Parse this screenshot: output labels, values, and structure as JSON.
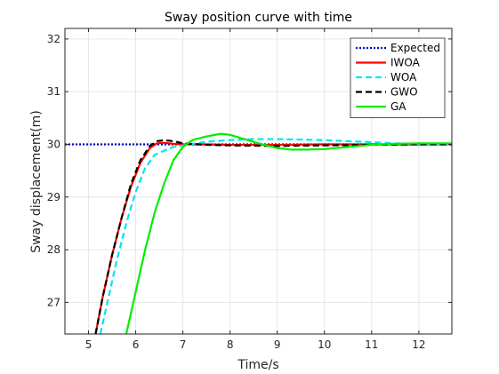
{
  "chart_data": {
    "type": "line",
    "title": "Sway position curve with time",
    "xlabel": "Time/s",
    "ylabel": "Sway displacement(m)",
    "xlim": [
      4.5,
      12.7
    ],
    "ylim": [
      26.4,
      32.2
    ],
    "xticks": [
      5,
      6,
      7,
      8,
      9,
      10,
      11,
      12
    ],
    "yticks": [
      27,
      28,
      29,
      30,
      31,
      32
    ],
    "grid": true,
    "legend_position": "top-right",
    "series": [
      {
        "name": "Expected",
        "color": "#0000cc",
        "dash": "dotted",
        "x": [
          4.5,
          12.7
        ],
        "y": [
          30.0,
          30.0
        ]
      },
      {
        "name": "IWOA",
        "color": "#ff0000",
        "dash": "solid",
        "x": [
          5.15,
          5.3,
          5.5,
          5.7,
          5.9,
          6.1,
          6.3,
          6.45,
          6.6,
          6.8,
          7.0,
          7.5,
          8.0,
          9.0,
          10.0,
          11.0,
          12.0,
          12.7
        ],
        "y": [
          26.4,
          27.1,
          27.9,
          28.6,
          29.2,
          29.65,
          29.93,
          30.02,
          30.03,
          30.01,
          30.0,
          30.0,
          29.99,
          29.99,
          30.0,
          30.0,
          30.0,
          30.0
        ]
      },
      {
        "name": "WOA",
        "color": "#00e5ee",
        "dash": "dashed",
        "x": [
          5.25,
          5.4,
          5.6,
          5.8,
          6.0,
          6.2,
          6.4,
          6.6,
          6.8,
          7.0,
          7.5,
          8.0,
          8.5,
          9.0,
          9.5,
          10.0,
          10.5,
          11.0,
          11.5,
          12.0,
          12.7
        ],
        "y": [
          26.4,
          27.0,
          27.8,
          28.5,
          29.1,
          29.55,
          29.8,
          29.88,
          29.95,
          29.98,
          30.05,
          30.08,
          30.1,
          30.1,
          30.09,
          30.08,
          30.06,
          30.04,
          30.02,
          30.01,
          30.0
        ]
      },
      {
        "name": "GWO",
        "color": "#000000",
        "dash": "dashed",
        "x": [
          5.15,
          5.3,
          5.5,
          5.7,
          5.9,
          6.1,
          6.3,
          6.45,
          6.6,
          6.8,
          7.0,
          7.5,
          8.0,
          9.0,
          10.0,
          11.0,
          12.0,
          12.7
        ],
        "y": [
          26.4,
          27.1,
          27.9,
          28.6,
          29.25,
          29.7,
          29.97,
          30.06,
          30.08,
          30.06,
          30.02,
          29.99,
          29.98,
          29.97,
          29.98,
          29.99,
          30.0,
          30.0
        ]
      },
      {
        "name": "GA",
        "color": "#00ee00",
        "dash": "solid",
        "x": [
          5.8,
          6.0,
          6.2,
          6.4,
          6.6,
          6.8,
          7.0,
          7.2,
          7.5,
          7.8,
          8.0,
          8.3,
          8.6,
          9.0,
          9.3,
          9.6,
          10.0,
          10.5,
          11.0,
          11.5,
          12.0,
          12.7
        ],
        "y": [
          26.4,
          27.2,
          28.0,
          28.7,
          29.25,
          29.7,
          29.95,
          30.08,
          30.15,
          30.2,
          30.18,
          30.1,
          30.02,
          29.93,
          29.9,
          29.9,
          29.91,
          29.95,
          29.99,
          30.01,
          30.02,
          30.02
        ]
      }
    ]
  }
}
